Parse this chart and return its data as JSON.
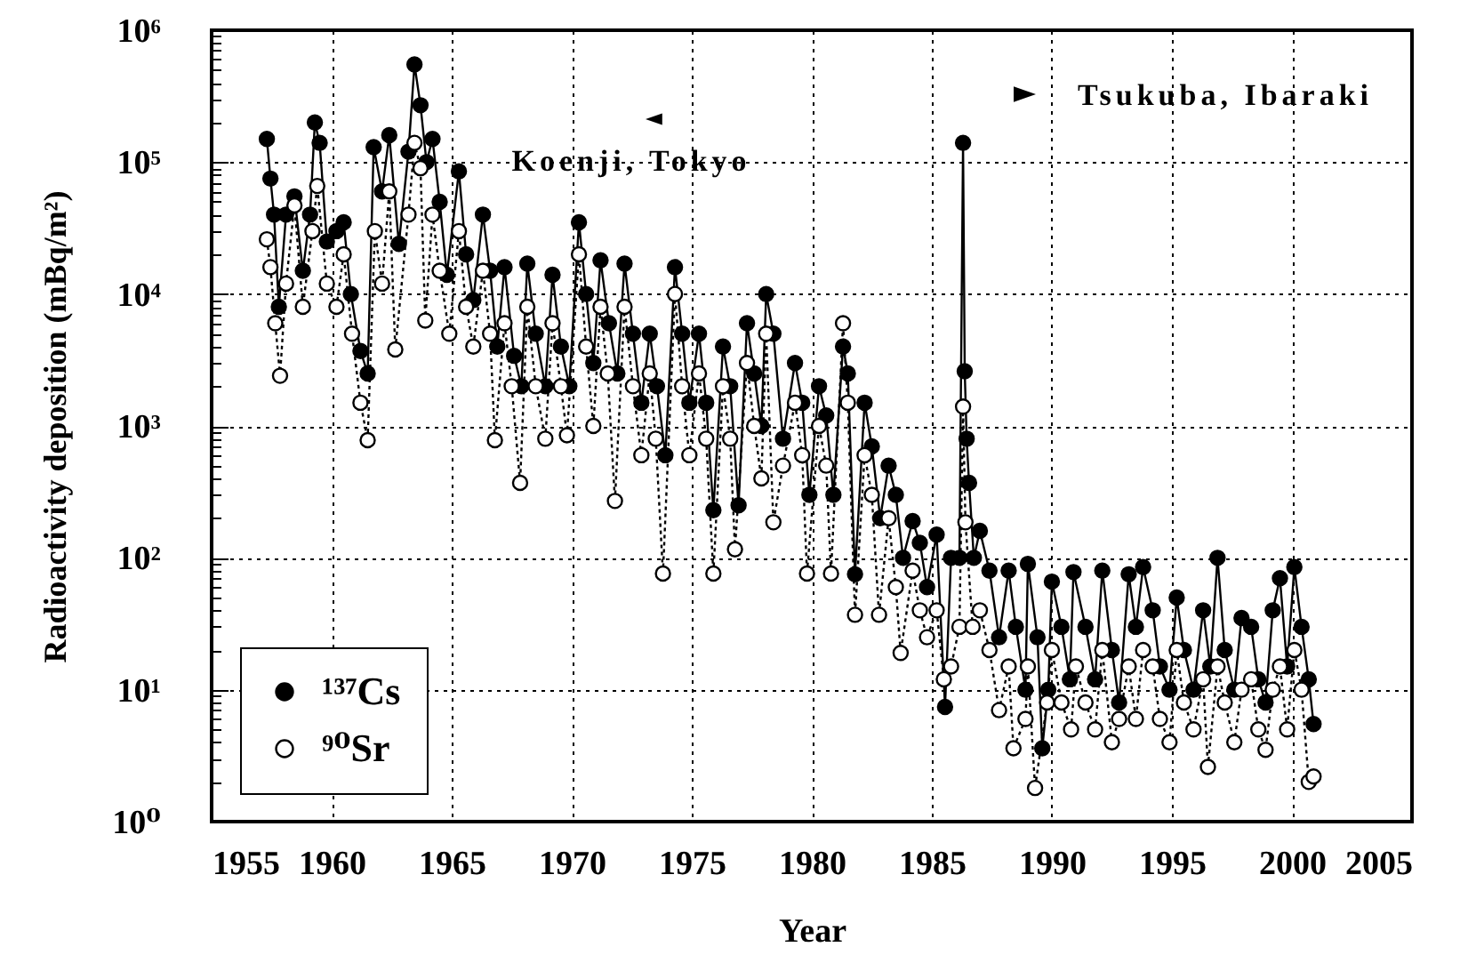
{
  "chart_data": {
    "type": "line",
    "xlabel": "Year",
    "ylabel": "Radioactivity deposition (mBq/m²)",
    "xlim": [
      1955,
      2005
    ],
    "ylim": [
      1,
      1000000
    ],
    "log": true,
    "grid": true,
    "legend": "bottom left",
    "marker": "circle",
    "xticks": [
      1955,
      1960,
      1965,
      1970,
      1975,
      1980,
      1985,
      1990,
      1995,
      2000,
      2005
    ],
    "yticks": [
      {
        "value": 1,
        "label": "10⁰"
      },
      {
        "value": 2,
        "label": null
      },
      {
        "value": 3,
        "label": null
      },
      {
        "value": 4,
        "label": null
      },
      {
        "value": 5,
        "label": null
      },
      {
        "value": 6,
        "label": null
      },
      {
        "value": 7,
        "label": null
      },
      {
        "value": 8,
        "label": null
      },
      {
        "value": 9,
        "label": null
      },
      {
        "value": 10,
        "label": "10¹"
      },
      {
        "value": 20,
        "label": null
      },
      {
        "value": 30,
        "label": null
      },
      {
        "value": 40,
        "label": null
      },
      {
        "value": 50,
        "label": null
      },
      {
        "value": 60,
        "label": null
      },
      {
        "value": 70,
        "label": null
      },
      {
        "value": 80,
        "label": null
      },
      {
        "value": 90,
        "label": null
      },
      {
        "value": 100,
        "label": "10²"
      },
      {
        "value": 200,
        "label": null
      },
      {
        "value": 300,
        "label": null
      },
      {
        "value": 400,
        "label": null
      },
      {
        "value": 500,
        "label": null
      },
      {
        "value": 600,
        "label": null
      },
      {
        "value": 700,
        "label": null
      },
      {
        "value": 800,
        "label": null
      },
      {
        "value": 900,
        "label": null
      },
      {
        "value": 1000,
        "label": "10³"
      },
      {
        "value": 2000,
        "label": null
      },
      {
        "value": 3000,
        "label": null
      },
      {
        "value": 4000,
        "label": null
      },
      {
        "value": 5000,
        "label": null
      },
      {
        "value": 6000,
        "label": null
      },
      {
        "value": 7000,
        "label": null
      },
      {
        "value": 8000,
        "label": null
      },
      {
        "value": 9000,
        "label": null
      },
      {
        "value": 10000,
        "label": "10⁴"
      },
      {
        "value": 20000,
        "label": null
      },
      {
        "value": 30000,
        "label": null
      },
      {
        "value": 40000,
        "label": null
      },
      {
        "value": 50000,
        "label": null
      },
      {
        "value": 60000,
        "label": null
      },
      {
        "value": 70000,
        "label": null
      },
      {
        "value": 80000,
        "label": null
      },
      {
        "value": 90000,
        "label": null
      },
      {
        "value": 100000,
        "label": "10⁵"
      },
      {
        "value": 200000,
        "label": null
      },
      {
        "value": 300000,
        "label": null
      },
      {
        "value": 400000,
        "label": null
      },
      {
        "value": 500000,
        "label": null
      },
      {
        "value": 600000,
        "label": null
      },
      {
        "value": 700000,
        "label": null
      },
      {
        "value": 800000,
        "label": null
      },
      {
        "value": 900000,
        "label": null
      },
      {
        "value": 1000000,
        "label": "10⁶"
      }
    ],
    "series": [
      {
        "name": "¹³⁷Cs",
        "color": "#000000",
        "line_style": "solid",
        "x": [
          1957.3,
          1957.45,
          1957.6,
          1957.8,
          1958.1,
          1958.45,
          1958.8,
          1959.1,
          1959.3,
          1959.5,
          1959.8,
          1960.2,
          1960.5,
          1960.8,
          1961.2,
          1961.5,
          1961.75,
          1962.1,
          1962.4,
          1962.8,
          1963.2,
          1963.45,
          1963.7,
          1963.95,
          1964.2,
          1964.5,
          1964.8,
          1965.3,
          1965.6,
          1965.9,
          1966.3,
          1966.6,
          1966.9,
          1967.2,
          1967.6,
          1967.9,
          1968.15,
          1968.5,
          1968.9,
          1969.2,
          1969.55,
          1969.9,
          1970.3,
          1970.6,
          1970.9,
          1971.2,
          1971.55,
          1971.9,
          1972.2,
          1972.55,
          1972.9,
          1973.25,
          1973.55,
          1973.9,
          1974.3,
          1974.6,
          1974.9,
          1975.3,
          1975.6,
          1975.9,
          1976.3,
          1976.6,
          1976.95,
          1977.3,
          1977.6,
          1977.9,
          1978.1,
          1978.4,
          1978.8,
          1979.3,
          1979.6,
          1979.9,
          1980.3,
          1980.6,
          1980.9,
          1981.3,
          1981.5,
          1981.8,
          1982.2,
          1982.5,
          1982.85,
          1983.2,
          1983.5,
          1983.8,
          1984.2,
          1984.5,
          1984.8,
          1985.2,
          1985.55,
          1985.8,
          1986.15,
          1986.3,
          1986.37,
          1986.45,
          1986.55,
          1986.75,
          1987,
          1987.4,
          1987.8,
          1988.2,
          1988.5,
          1988.9,
          1989,
          1989.4,
          1989.6,
          1989.85,
          1990,
          1990.4,
          1990.75,
          1990.9,
          1991.4,
          1991.8,
          1992.1,
          1992.5,
          1992.8,
          1993.2,
          1993.5,
          1993.8,
          1994.2,
          1994.5,
          1994.9,
          1995.2,
          1995.5,
          1995.9,
          1996.3,
          1996.6,
          1996.9,
          1997.2,
          1997.6,
          1997.9,
          1998.3,
          1998.6,
          1998.9,
          1999.2,
          1999.5,
          1999.8,
          2000.1,
          2000.4,
          2000.7,
          2000.9
        ],
        "values": [
          150000,
          75000,
          40000,
          8000,
          40000,
          55000,
          15000,
          40000,
          200000,
          140000,
          25000,
          30000,
          35000,
          10000,
          3700,
          2500,
          130000,
          60000,
          160000,
          24000,
          120000,
          550000,
          270000,
          100000,
          150000,
          50000,
          14000,
          85000,
          20000,
          9000,
          40000,
          15000,
          4000,
          16000,
          3400,
          2000,
          17000,
          5000,
          2000,
          14000,
          4000,
          2000,
          35000,
          10000,
          3000,
          18000,
          6000,
          2500,
          17000,
          5000,
          1500,
          5000,
          2000,
          600,
          16000,
          5000,
          1500,
          5000,
          1500,
          230,
          4000,
          2000,
          250,
          6000,
          2500,
          1000,
          10000,
          5000,
          800,
          3000,
          1500,
          300,
          2000,
          1200,
          300,
          4000,
          2500,
          75,
          1500,
          700,
          200,
          500,
          300,
          100,
          190,
          130,
          60,
          150,
          7.4,
          100,
          100,
          140000,
          2600,
          800,
          370,
          100,
          160,
          80,
          25,
          80,
          30,
          10,
          90,
          25,
          3.6,
          10,
          66,
          30,
          12,
          78,
          30,
          12,
          80,
          20,
          8,
          75,
          30,
          85,
          40,
          15,
          10,
          50,
          20,
          10,
          40,
          15,
          100,
          20,
          10,
          35,
          30,
          12,
          8,
          40,
          70,
          15,
          85,
          30,
          12,
          5.5
        ]
      },
      {
        "name": "⁹⁰Sr",
        "color": "#000000",
        "line_style": "dotted",
        "x": [
          1957.3,
          1957.45,
          1957.65,
          1957.85,
          1958.1,
          1958.45,
          1958.8,
          1959.2,
          1959.4,
          1959.8,
          1960.2,
          1960.5,
          1960.85,
          1961.2,
          1961.5,
          1961.8,
          1962.1,
          1962.4,
          1962.65,
          1963.2,
          1963.45,
          1963.7,
          1963.9,
          1964.2,
          1964.5,
          1964.9,
          1965.3,
          1965.6,
          1965.9,
          1966.3,
          1966.6,
          1966.8,
          1967.2,
          1967.5,
          1967.85,
          1968.15,
          1968.5,
          1968.9,
          1969.2,
          1969.55,
          1969.8,
          1970.3,
          1970.6,
          1970.9,
          1971.2,
          1971.5,
          1971.8,
          1972.2,
          1972.55,
          1972.9,
          1973.25,
          1973.5,
          1973.8,
          1974.3,
          1974.6,
          1974.9,
          1975.3,
          1975.6,
          1975.9,
          1976.3,
          1976.6,
          1976.8,
          1977.3,
          1977.6,
          1977.9,
          1978.1,
          1978.4,
          1978.8,
          1979.3,
          1979.6,
          1979.8,
          1980.3,
          1980.6,
          1980.8,
          1981.3,
          1981.5,
          1981.8,
          1982.2,
          1982.5,
          1982.8,
          1983.2,
          1983.5,
          1983.7,
          1984.2,
          1984.5,
          1984.8,
          1985.2,
          1985.5,
          1985.8,
          1986.15,
          1986.3,
          1986.4,
          1986.7,
          1987,
          1987.4,
          1987.8,
          1988.2,
          1988.4,
          1988.9,
          1989,
          1989.3,
          1989.8,
          1990,
          1990.4,
          1990.8,
          1991,
          1991.4,
          1991.8,
          1992.1,
          1992.5,
          1992.8,
          1993.2,
          1993.5,
          1993.8,
          1994.2,
          1994.5,
          1994.9,
          1995.2,
          1995.5,
          1995.9,
          1996.3,
          1996.5,
          1996.9,
          1997.2,
          1997.6,
          1997.9,
          1998.3,
          1998.6,
          1998.9,
          1999.2,
          1999.5,
          1999.8,
          2000.1,
          2000.4,
          2000.7,
          2000.9
        ],
        "values": [
          26000,
          16000,
          6000,
          2400,
          12000,
          47000,
          8000,
          30000,
          66000,
          12000,
          8000,
          20000,
          5000,
          1500,
          780,
          30000,
          12000,
          60000,
          3800,
          40000,
          140000,
          90000,
          6300,
          40000,
          15000,
          5000,
          30000,
          8000,
          4000,
          15000,
          5000,
          780,
          6000,
          2000,
          370,
          8000,
          2000,
          800,
          6000,
          2000,
          850,
          20000,
          4000,
          1000,
          8000,
          2500,
          270,
          8000,
          2000,
          600,
          2500,
          800,
          76,
          10000,
          2000,
          600,
          2500,
          800,
          76,
          2000,
          800,
          116,
          3000,
          1000,
          400,
          5000,
          186,
          500,
          1500,
          600,
          76,
          1000,
          500,
          76,
          6000,
          1500,
          37,
          600,
          300,
          37,
          200,
          60,
          19,
          80,
          40,
          25,
          40,
          12,
          15,
          30,
          1400,
          186,
          30,
          40,
          20,
          7,
          15,
          3.6,
          6,
          15,
          1.8,
          8,
          20,
          8,
          5,
          15,
          8,
          5,
          20,
          4,
          6,
          15,
          6,
          20,
          15,
          6,
          4,
          20,
          8,
          5,
          12,
          2.6,
          15,
          8,
          4,
          10,
          12,
          5,
          3.5,
          10,
          15,
          5,
          20,
          10,
          2,
          2.2
        ]
      }
    ],
    "annotations": [
      "Koenji, Tokyo",
      "Tsukuba, Ibaraki"
    ]
  }
}
